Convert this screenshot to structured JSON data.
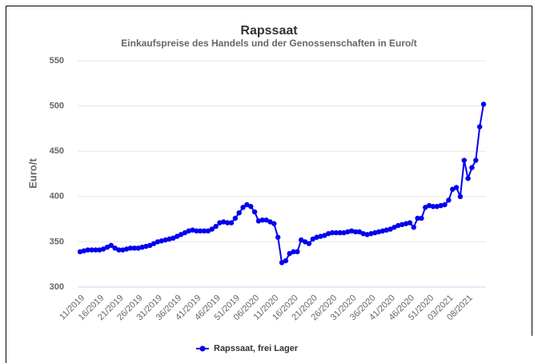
{
  "chart_data": {
    "type": "line",
    "title": "Rapssaat",
    "subtitle": "Einkaufspreise des Handels und der Genossenschaften in Euro/t",
    "y_label": "Euro/t",
    "categories": [
      "11/2019",
      null,
      null,
      null,
      null,
      "16/2019",
      null,
      null,
      null,
      null,
      "21/2019",
      null,
      null,
      null,
      null,
      "26/2019",
      null,
      null,
      null,
      null,
      "31/2019",
      null,
      null,
      null,
      null,
      "36/2019",
      null,
      null,
      null,
      null,
      "41/2019",
      null,
      null,
      null,
      null,
      "46/2019",
      null,
      null,
      null,
      null,
      "51/2019",
      null,
      null,
      null,
      null,
      "06/2020",
      null,
      null,
      null,
      null,
      "11/2020",
      null,
      null,
      null,
      null,
      "16/2020",
      null,
      null,
      null,
      null,
      "21/2020",
      null,
      null,
      null,
      null,
      "26/2020",
      null,
      null,
      null,
      null,
      "31/2020",
      null,
      null,
      null,
      null,
      "36/2020",
      null,
      null,
      null,
      null,
      "41/2020",
      null,
      null,
      null,
      null,
      "46/2020",
      null,
      null,
      null,
      null,
      "51/2020",
      null,
      null,
      null,
      null,
      "03/2021",
      null,
      null,
      null,
      null,
      "08/2021",
      null,
      null,
      null,
      null
    ],
    "series": [
      {
        "name": "Rapssaat, frei Lager",
        "color": "#0000ee",
        "values": [
          339,
          340,
          341,
          341,
          341,
          341,
          342,
          344,
          346,
          343,
          341,
          341,
          342,
          343,
          343,
          343,
          344,
          345,
          346,
          348,
          350,
          351,
          352,
          353,
          354,
          356,
          358,
          360,
          362,
          363,
          362,
          362,
          362,
          362,
          364,
          367,
          371,
          372,
          371,
          371,
          376,
          382,
          388,
          391,
          389,
          383,
          373,
          374,
          374,
          372,
          370,
          355,
          327,
          329,
          337,
          339,
          339,
          352,
          350,
          348,
          353,
          355,
          356,
          357,
          359,
          360,
          360,
          360,
          360,
          361,
          362,
          361,
          361,
          359,
          358,
          359,
          360,
          361,
          362,
          363,
          364,
          366,
          368,
          369,
          370,
          371,
          366,
          376,
          376,
          388,
          390,
          389,
          389,
          390,
          391,
          396,
          408,
          410,
          400,
          440,
          420,
          432,
          440,
          477,
          502
        ]
      }
    ],
    "ylim": [
      300,
      550
    ],
    "yticks": [
      300,
      350,
      400,
      450,
      500,
      550
    ],
    "grid": true,
    "legend": "bottom"
  }
}
